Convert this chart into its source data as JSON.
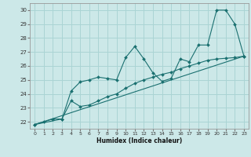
{
  "xlabel": "Humidex (Indice chaleur)",
  "bg_color": "#cce8e8",
  "grid_color": "#aad4d4",
  "line_color": "#1a7070",
  "xlim": [
    -0.5,
    23.5
  ],
  "ylim": [
    21.5,
    30.5
  ],
  "xticks": [
    0,
    1,
    2,
    3,
    4,
    5,
    6,
    7,
    8,
    9,
    10,
    11,
    12,
    13,
    14,
    15,
    16,
    17,
    18,
    19,
    20,
    21,
    22,
    23
  ],
  "yticks": [
    22,
    23,
    24,
    25,
    26,
    27,
    28,
    29,
    30
  ],
  "series1": [
    [
      0,
      21.8
    ],
    [
      1,
      22.0
    ],
    [
      2,
      22.2
    ],
    [
      3,
      22.2
    ],
    [
      4,
      24.2
    ],
    [
      5,
      24.85
    ],
    [
      6,
      25.0
    ],
    [
      7,
      25.2
    ],
    [
      8,
      25.1
    ],
    [
      9,
      25.0
    ],
    [
      10,
      26.6
    ],
    [
      11,
      27.4
    ],
    [
      12,
      26.5
    ],
    [
      13,
      25.5
    ],
    [
      14,
      24.9
    ],
    [
      15,
      25.1
    ],
    [
      16,
      26.5
    ],
    [
      17,
      26.3
    ],
    [
      18,
      27.5
    ],
    [
      19,
      27.5
    ],
    [
      20,
      30.0
    ],
    [
      21,
      30.0
    ],
    [
      22,
      29.0
    ],
    [
      23,
      26.7
    ]
  ],
  "series2": [
    [
      0,
      21.8
    ],
    [
      3,
      22.2
    ],
    [
      4,
      23.5
    ],
    [
      5,
      23.1
    ],
    [
      6,
      23.2
    ],
    [
      7,
      23.5
    ],
    [
      8,
      23.8
    ],
    [
      9,
      24.0
    ],
    [
      10,
      24.4
    ],
    [
      11,
      24.75
    ],
    [
      12,
      25.0
    ],
    [
      13,
      25.2
    ],
    [
      14,
      25.4
    ],
    [
      15,
      25.55
    ],
    [
      16,
      25.8
    ],
    [
      17,
      26.0
    ],
    [
      18,
      26.2
    ],
    [
      19,
      26.4
    ],
    [
      20,
      26.5
    ],
    [
      21,
      26.55
    ],
    [
      22,
      26.6
    ],
    [
      23,
      26.7
    ]
  ],
  "series3": [
    [
      0,
      21.8
    ],
    [
      23,
      26.7
    ]
  ]
}
